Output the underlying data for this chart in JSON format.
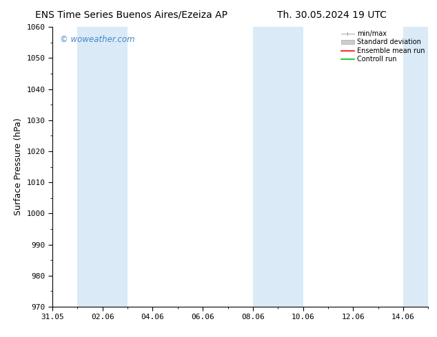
{
  "title": "ENS Time Series Buenos Aires/Ezeiza AP      Th. 30.05.2024 19 UTC",
  "title_left": "ENS Time Series Buenos Aires/Ezeiza AP",
  "title_right": "Th. 30.05.2024 19 UTC",
  "ylabel": "Surface Pressure (hPa)",
  "ylim": [
    970,
    1060
  ],
  "yticks": [
    970,
    980,
    990,
    1000,
    1010,
    1020,
    1030,
    1040,
    1050,
    1060
  ],
  "xtick_labels": [
    "31.05",
    "02.06",
    "04.06",
    "06.06",
    "08.06",
    "10.06",
    "12.06",
    "14.06"
  ],
  "xtick_positions": [
    0,
    2,
    4,
    6,
    8,
    10,
    12,
    14
  ],
  "x_min": 0,
  "x_max": 15,
  "shaded_bands": [
    {
      "xstart": 1,
      "xend": 3
    },
    {
      "xstart": 8,
      "xend": 9
    },
    {
      "xstart": 9,
      "xend": 10
    },
    {
      "xstart": 14,
      "xend": 15
    }
  ],
  "shaded_color": "#daeaf7",
  "background_color": "#ffffff",
  "watermark_text": "© woweather.com",
  "watermark_color": "#4488cc",
  "legend_entries": [
    {
      "label": "min/max",
      "color": "#aaaaaa",
      "style": "minmax"
    },
    {
      "label": "Standard deviation",
      "color": "#cccccc",
      "style": "fill"
    },
    {
      "label": "Ensemble mean run",
      "color": "#ff0000",
      "style": "line"
    },
    {
      "label": "Controll run",
      "color": "#00bb00",
      "style": "line"
    }
  ],
  "title_fontsize": 10,
  "tick_fontsize": 8,
  "label_fontsize": 9
}
